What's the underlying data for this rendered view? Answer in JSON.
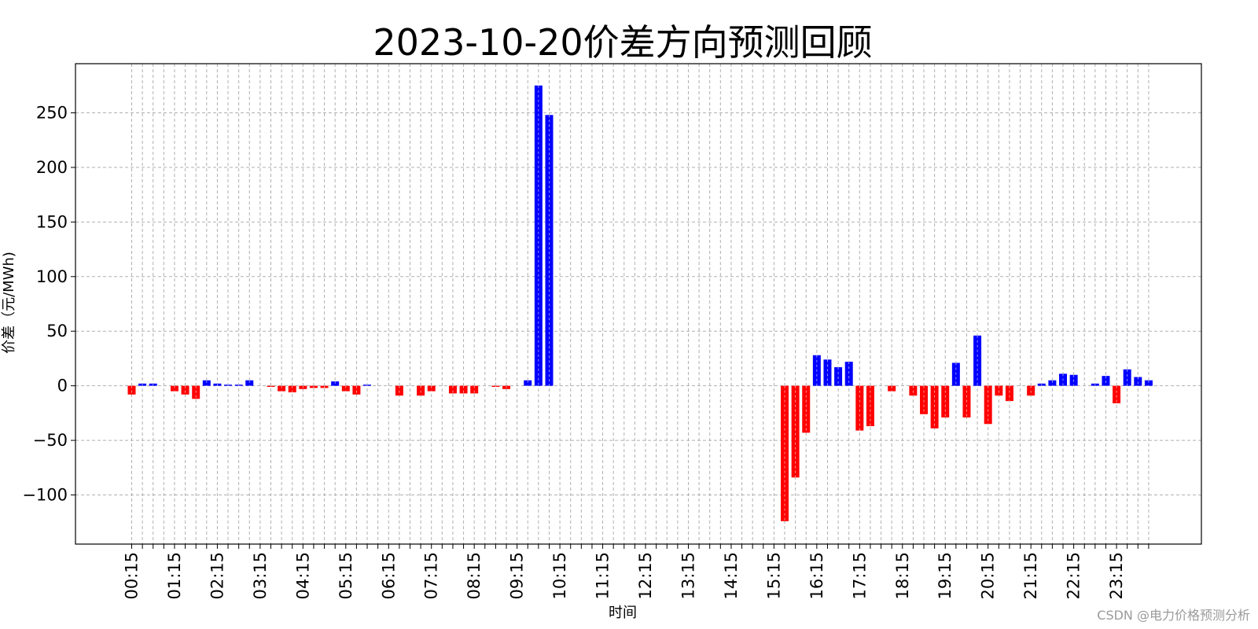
{
  "chart_data": {
    "type": "bar",
    "title": "2023-10-20价差方向预测回顾",
    "xlabel": "时间",
    "ylabel": "价差（元/MWh)",
    "ylim": [
      -145,
      295
    ],
    "yticks": [
      -100,
      -50,
      0,
      50,
      100,
      150,
      200,
      250
    ],
    "ytick_labels": [
      "−100",
      "−50",
      "0",
      "50",
      "100",
      "150",
      "200",
      "250"
    ],
    "grid": true,
    "x_tick_labels": [
      "00:15",
      "01:15",
      "02:15",
      "03:15",
      "04:15",
      "05:15",
      "06:15",
      "07:15",
      "08:15",
      "09:15",
      "10:15",
      "11:15",
      "12:15",
      "13:15",
      "14:15",
      "15:15",
      "16:15",
      "17:15",
      "18:15",
      "19:15",
      "20:15",
      "21:15",
      "22:15",
      "23:15"
    ],
    "x_tick_interval": 4,
    "values": [
      -8,
      2,
      2,
      0,
      -5,
      -8,
      -12,
      5,
      2,
      1,
      1,
      5,
      0,
      -1,
      -5,
      -6,
      -3,
      -2,
      -2,
      4,
      -5,
      -8,
      1,
      0,
      0,
      -9,
      0,
      -9,
      -5,
      0,
      -7,
      -7,
      -7,
      0,
      -1,
      -3,
      0,
      5,
      275,
      248,
      0,
      0,
      0,
      0,
      0,
      0,
      0,
      0,
      0,
      0,
      0,
      0,
      0,
      0,
      0,
      0,
      0,
      0,
      0,
      0,
      0,
      -124,
      -84,
      -43,
      28,
      24,
      17,
      22,
      -41,
      -37,
      0,
      -5,
      0,
      -9,
      -26,
      -39,
      -29,
      21,
      -29,
      46,
      -35,
      -9,
      -14,
      0,
      -9,
      2,
      5,
      11,
      10,
      0,
      2,
      9,
      -16,
      15,
      8,
      5
    ],
    "colors": {
      "positive": "#0000ff",
      "negative": "#ff0000"
    },
    "watermark": "CSDN @电力价格预测分析"
  }
}
